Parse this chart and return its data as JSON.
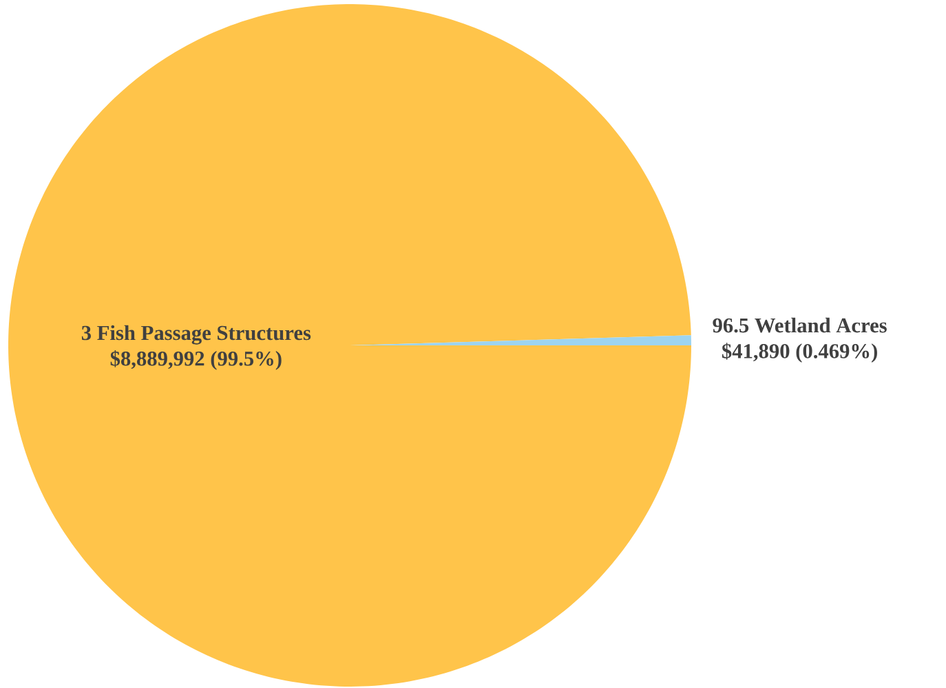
{
  "chart_data": {
    "type": "pie",
    "categories": [
      "3 Fish Passage Structures",
      "96.5 Wetland Acres"
    ],
    "values": [
      8889992,
      41890
    ],
    "colors": [
      "#ffc44a",
      "#9dd4f0"
    ],
    "value_labels": [
      "$8,889,992  (99.5%)",
      "$41,890  (0.469%)"
    ]
  }
}
